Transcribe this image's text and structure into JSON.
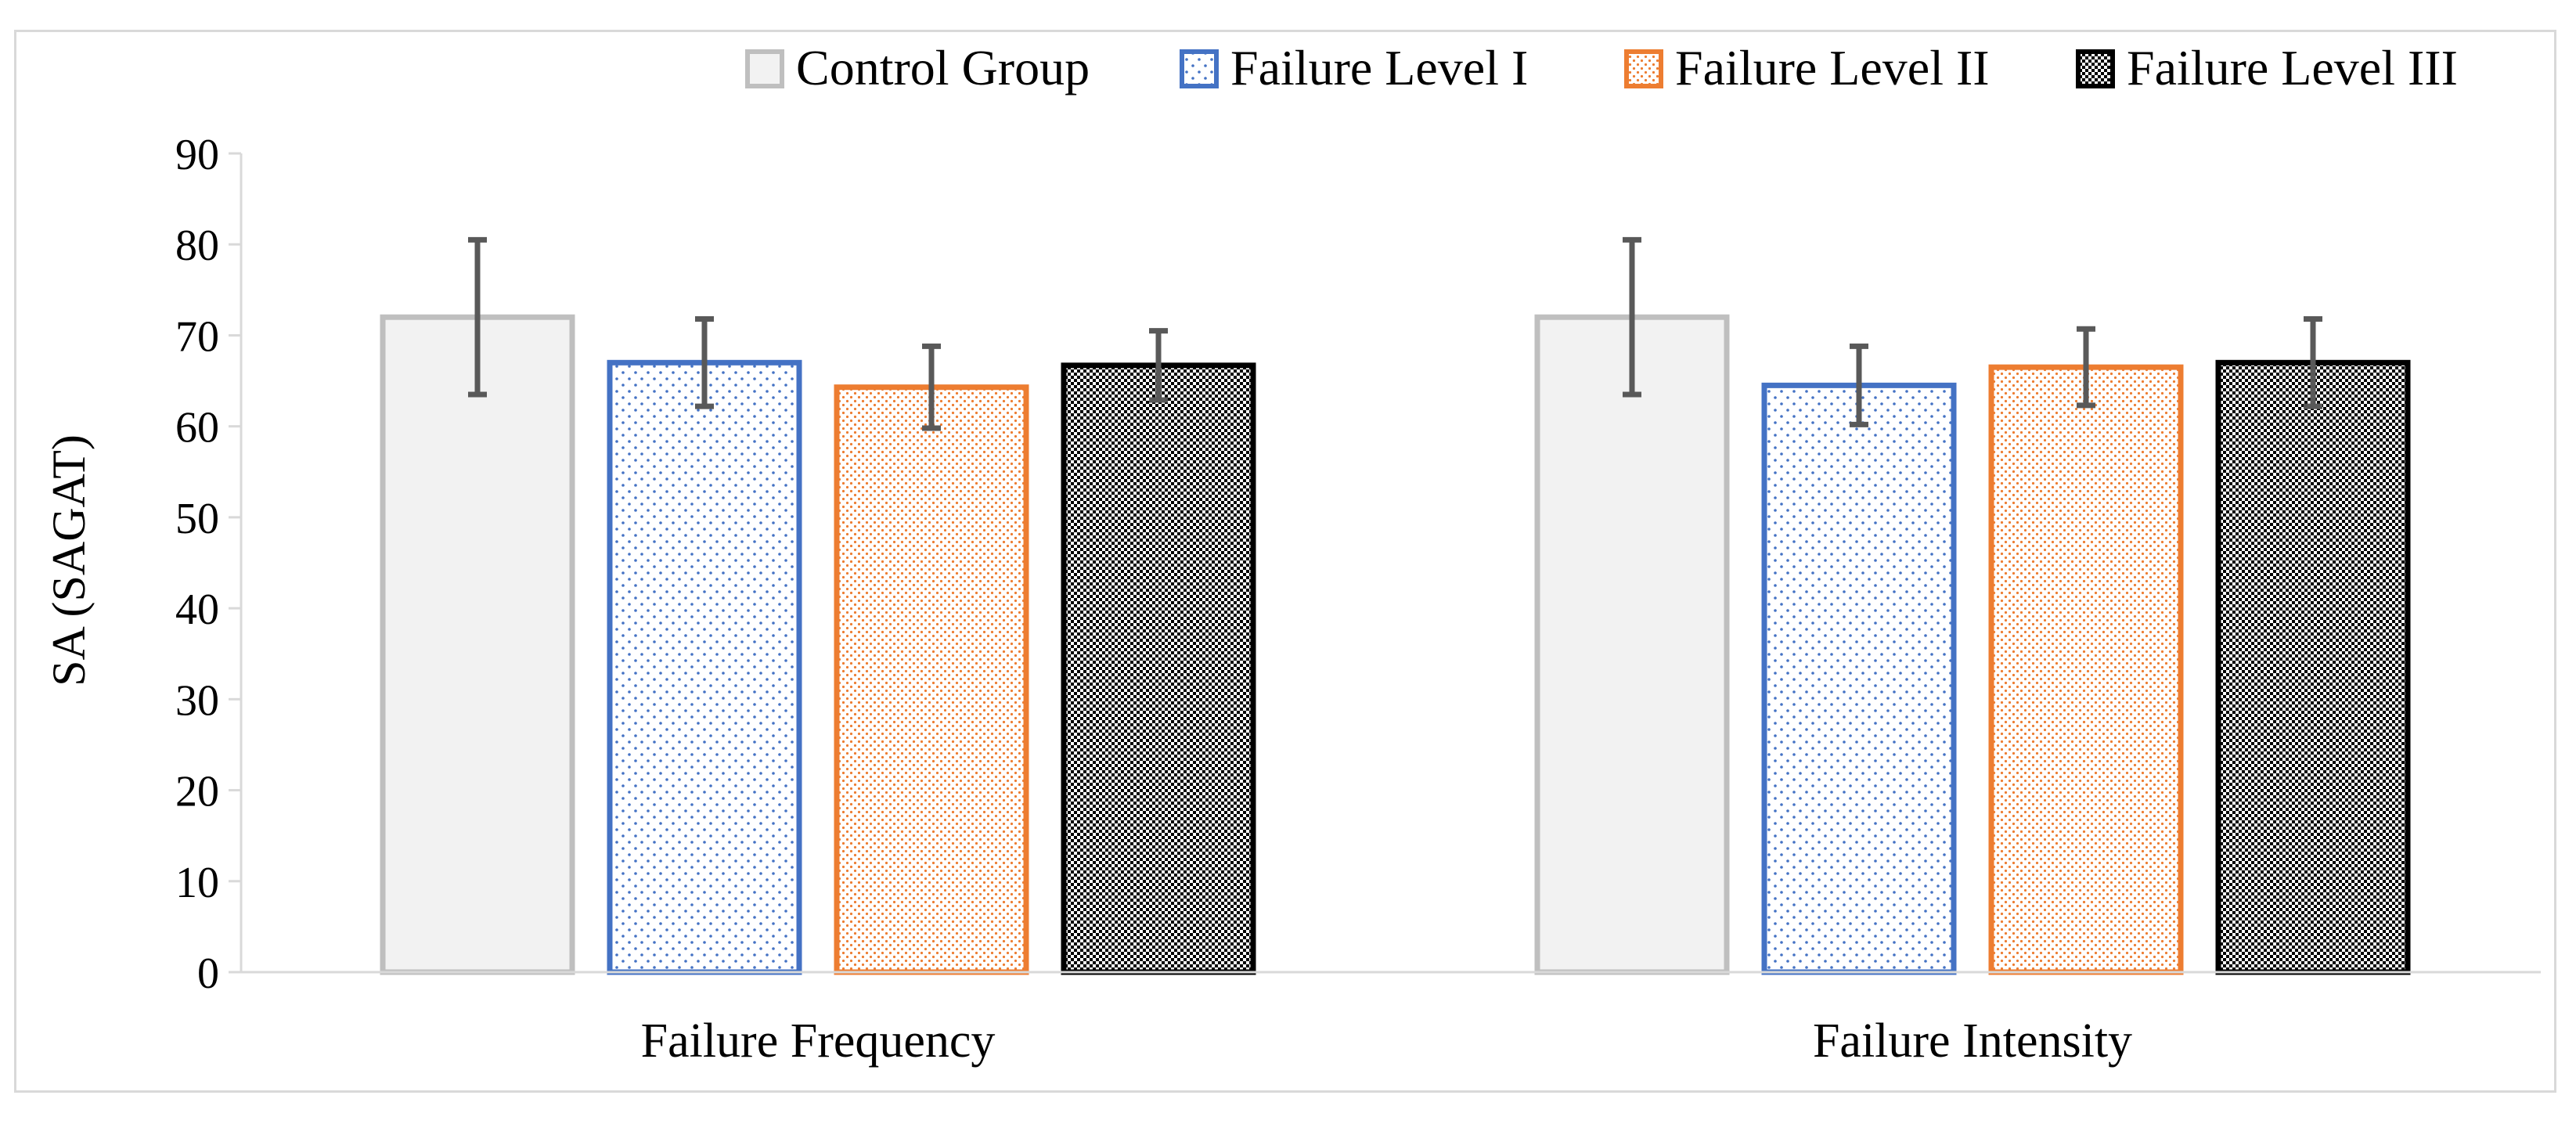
{
  "chart_data": {
    "type": "bar",
    "title": "",
    "xlabel": "",
    "ylabel": "SA (SAGAT)",
    "ylim": [
      0,
      90
    ],
    "yticks": [
      0,
      10,
      20,
      30,
      40,
      50,
      60,
      70,
      80,
      90
    ],
    "categories": [
      "Failure Frequency",
      "Failure Intensity"
    ],
    "legend_position": "top-right",
    "grid": false,
    "error_bar_color": "#595959",
    "series": [
      {
        "name": "Control Group",
        "values": [
          72.0,
          72.0
        ],
        "error": [
          8.5,
          8.5
        ],
        "fill": "#f2f2f2",
        "stroke": "#bfbfbf",
        "pattern": "solid"
      },
      {
        "name": "Failure Level I",
        "values": [
          67.0,
          64.5
        ],
        "error": [
          4.8,
          4.3
        ],
        "fill": "#ffffff",
        "stroke": "#4472c4",
        "pattern": "sparse-dots"
      },
      {
        "name": "Failure Level II",
        "values": [
          64.3,
          66.5
        ],
        "error": [
          4.5,
          4.2
        ],
        "fill": "#ffffff",
        "stroke": "#ed7d31",
        "pattern": "dense-dots"
      },
      {
        "name": "Failure Level III",
        "values": [
          66.7,
          67.0
        ],
        "error": [
          3.8,
          4.8
        ],
        "fill": "#ffffff",
        "stroke": "#000000",
        "pattern": "checker"
      }
    ]
  }
}
